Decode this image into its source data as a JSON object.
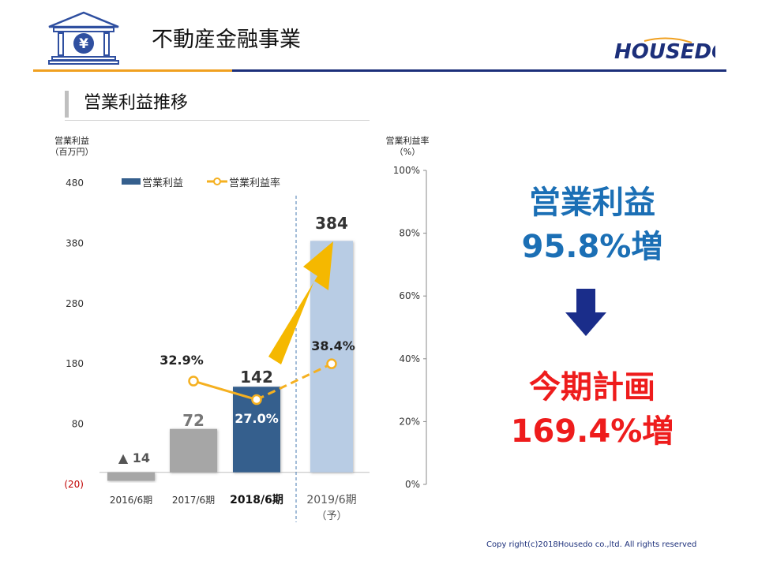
{
  "header": {
    "title": "不動産金融事業",
    "bank_icon": "bank-yen-icon",
    "yen_symbol": "¥"
  },
  "logo": {
    "text": "HOUSEDO"
  },
  "section": {
    "title": "営業利益推移"
  },
  "colors": {
    "navy": "#1c2f7a",
    "orange": "#f0a020",
    "bar_grey": "#a6a6a6",
    "bar_2018": "#355f8d",
    "bar_2019": "#b8cce4",
    "rate_line": "#f5b020",
    "arrow": "#f5b800",
    "highlight_blue": "#1b6fb5",
    "highlight_red": "#ee1c1c"
  },
  "chart_data": {
    "type": "bar",
    "left_axis_label": [
      "営業利益",
      "（百万円）"
    ],
    "right_axis_label": [
      "営業利益率",
      "（%）"
    ],
    "categories": [
      "2016/6期",
      "2017/6期",
      "2018/6期",
      "2019/6期"
    ],
    "category_note": "（予）",
    "ylim": [
      -20,
      480
    ],
    "yticks": [
      -20,
      80,
      180,
      280,
      380,
      480
    ],
    "ytick_labels": [
      "(20)",
      "80",
      "180",
      "280",
      "380",
      "480"
    ],
    "y2lim": [
      0,
      100
    ],
    "y2ticks": [
      "0%",
      "20%",
      "40%",
      "60%",
      "80%",
      "100%"
    ],
    "legend": [
      "営業利益",
      "営業利益率"
    ],
    "legend_position": "top",
    "series": [
      {
        "name": "営業利益",
        "values": [
          -14,
          72,
          142,
          384
        ],
        "labels": [
          "▲ 14",
          "72",
          "142",
          "384"
        ]
      },
      {
        "name": "営業利益率",
        "values": [
          null,
          32.9,
          27.0,
          38.4
        ],
        "labels": [
          "",
          "32.9%",
          "27.0%",
          "38.4%"
        ]
      }
    ]
  },
  "highlight": {
    "line1": "営業利益",
    "line2": "95.8%増",
    "line3": "今期計画",
    "line4": "169.4%増",
    "arrow_icon": "down-arrow-icon"
  },
  "footer": {
    "copyright": "Copy right(c)2018Housedo co.,ltd. All rights reserved"
  }
}
